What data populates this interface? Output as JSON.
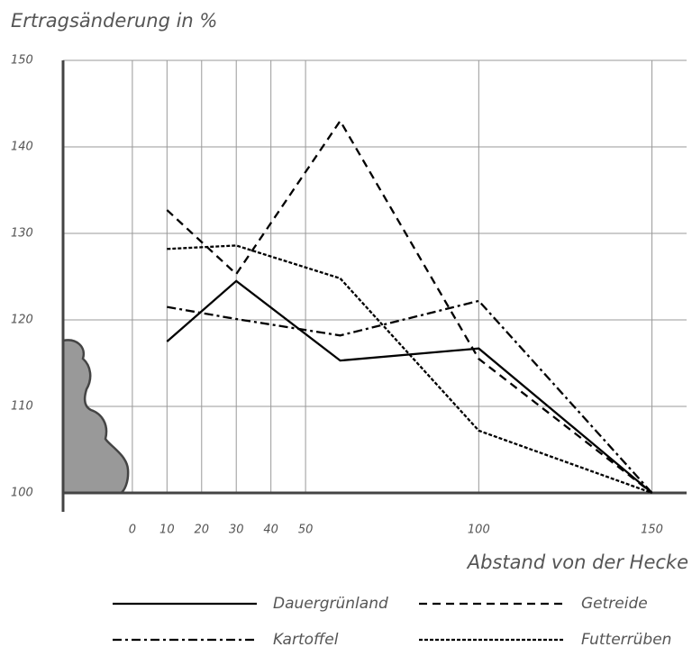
{
  "chart_data": {
    "type": "line",
    "y_label": "Ertragsänderung in %",
    "x_label": "Abstand von der Hecke",
    "x": [
      10,
      30,
      60,
      100,
      150
    ],
    "series": [
      {
        "name": "Dauergrünland",
        "color": "#000000",
        "line_style": "solid",
        "values": [
          117.5,
          124.5,
          115.3,
          116.7,
          100
        ]
      },
      {
        "name": "Getreide",
        "color": "#000000",
        "line_style": "dashed",
        "values": [
          132.7,
          125.3,
          143,
          115.5,
          100
        ]
      },
      {
        "name": "Kartoffel",
        "color": "#000000",
        "line_style": "dashdot",
        "values": [
          121.5,
          120.1,
          118.2,
          122.2,
          100
        ]
      },
      {
        "name": "Futterrüben",
        "color": "#000000",
        "line_style": "dotted",
        "values": [
          128.2,
          128.6,
          124.8,
          107.2,
          100
        ]
      }
    ],
    "xlim": [
      -20,
      160
    ],
    "xticks": [
      0,
      10,
      20,
      30,
      40,
      50,
      100,
      150
    ],
    "ylim": [
      100,
      150
    ],
    "yticks": [
      100,
      110,
      120,
      130,
      140,
      150
    ],
    "grid": true
  }
}
